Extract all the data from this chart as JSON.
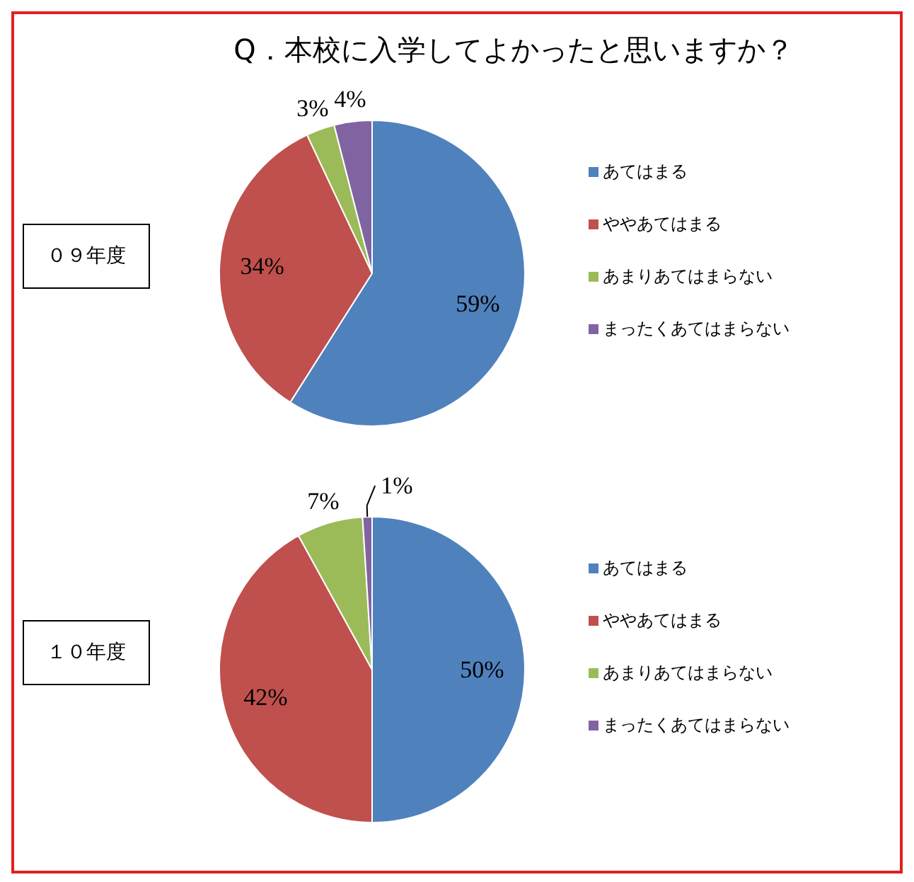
{
  "chart_data": [
    {
      "type": "pie",
      "title": "Q．本校に入学してよかったと思いますか？",
      "subtitle": "０９年度",
      "categories": [
        "あてはまる",
        "ややあてはまる",
        "あまりあてはまらない",
        "まったくあてはまらない"
      ],
      "values": [
        59,
        34,
        3,
        4
      ],
      "value_labels": [
        "59%",
        "34%",
        "3%",
        "4%"
      ],
      "colors": [
        "#4f81bd",
        "#c0504d",
        "#9bbb59",
        "#8064a2"
      ],
      "legend": "right"
    },
    {
      "type": "pie",
      "subtitle": "１０年度",
      "categories": [
        "あてはまる",
        "ややあてはまる",
        "あまりあてはまらない",
        "まったくあてはまらない"
      ],
      "values": [
        50,
        42,
        7,
        1
      ],
      "value_labels": [
        "50%",
        "42%",
        "7%",
        "1%"
      ],
      "colors": [
        "#4f81bd",
        "#c0504d",
        "#9bbb59",
        "#8064a2"
      ],
      "legend": "right"
    }
  ]
}
